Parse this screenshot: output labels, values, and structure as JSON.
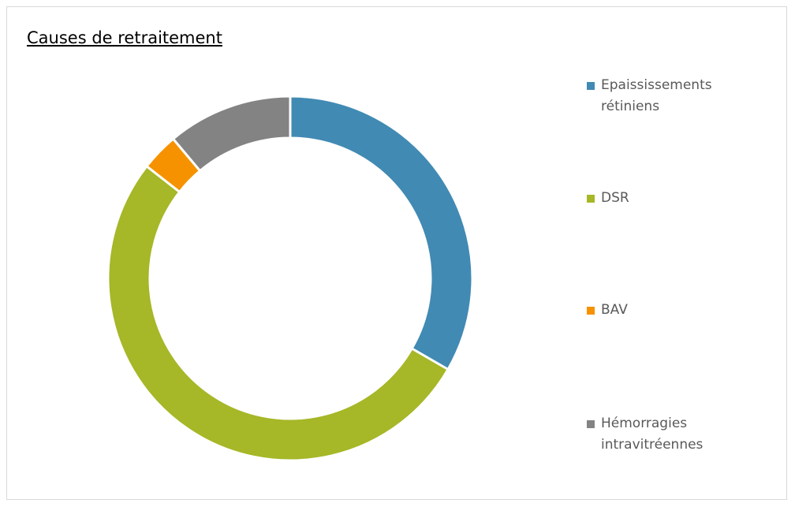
{
  "chart_data": {
    "type": "donut",
    "title": "Causes de retraitement",
    "categories": [
      "Epaississements rétiniens",
      "DSR",
      "BAV",
      "Hémorragies intravitréennes"
    ],
    "values": [
      30,
      47,
      3,
      10
    ],
    "colors": [
      "#418ab3",
      "#a6b727",
      "#f69200",
      "#838383"
    ],
    "legend": "right"
  }
}
